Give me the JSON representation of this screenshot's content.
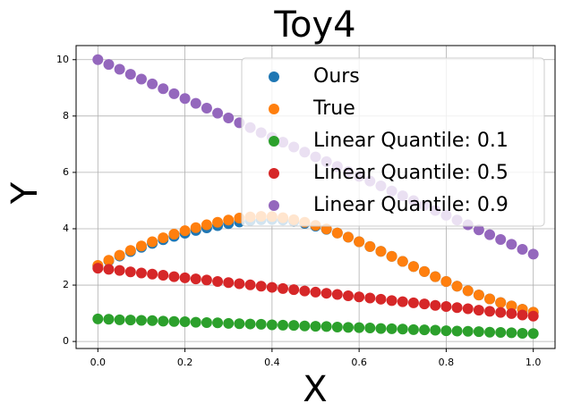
{
  "chart_data": {
    "type": "scatter",
    "title": "Toy4",
    "x_label": "X",
    "y_label": "Y",
    "x": [
      0,
      0.025,
      0.05,
      0.075,
      0.1,
      0.125,
      0.15,
      0.175,
      0.2,
      0.225,
      0.25,
      0.275,
      0.3,
      0.325,
      0.35,
      0.375,
      0.4,
      0.425,
      0.45,
      0.475,
      0.5,
      0.525,
      0.55,
      0.575,
      0.6,
      0.625,
      0.65,
      0.675,
      0.7,
      0.725,
      0.75,
      0.775,
      0.8,
      0.825,
      0.85,
      0.875,
      0.9,
      0.925,
      0.95,
      0.975,
      1
    ],
    "series": [
      {
        "name": "Ours",
        "color": "#1f77b4",
        "values": [
          2.68,
          2.86,
          3.03,
          3.19,
          3.34,
          3.48,
          3.61,
          3.73,
          3.84,
          3.94,
          4.03,
          4.11,
          4.18,
          4.24,
          4.29,
          4.32,
          4.33,
          4.31,
          4.26,
          4.19,
          4.09,
          3.98,
          3.85,
          3.7,
          3.54,
          3.37,
          3.2,
          3.02,
          2.84,
          2.66,
          2.48,
          2.3,
          2.13,
          1.96,
          1.8,
          1.65,
          1.51,
          1.38,
          1.26,
          1.14,
          1.04
        ]
      },
      {
        "name": "True",
        "color": "#ff7f0e",
        "values": [
          2.7,
          2.88,
          3.06,
          3.23,
          3.39,
          3.54,
          3.68,
          3.81,
          3.93,
          4.04,
          4.14,
          4.23,
          4.31,
          4.38,
          4.42,
          4.44,
          4.43,
          4.39,
          4.32,
          4.23,
          4.12,
          3.99,
          3.85,
          3.7,
          3.54,
          3.37,
          3.2,
          3.02,
          2.84,
          2.66,
          2.48,
          2.3,
          2.13,
          1.96,
          1.8,
          1.65,
          1.51,
          1.38,
          1.26,
          1.14,
          1.04
        ]
      },
      {
        "name": "Linear Quantile: 0.1",
        "color": "#2ca02c",
        "values": [
          0.8,
          0.79,
          0.77,
          0.76,
          0.75,
          0.74,
          0.72,
          0.71,
          0.7,
          0.68,
          0.67,
          0.66,
          0.64,
          0.63,
          0.62,
          0.61,
          0.59,
          0.58,
          0.57,
          0.55,
          0.54,
          0.53,
          0.51,
          0.5,
          0.49,
          0.48,
          0.46,
          0.45,
          0.44,
          0.42,
          0.41,
          0.4,
          0.38,
          0.37,
          0.36,
          0.35,
          0.33,
          0.32,
          0.31,
          0.29,
          0.28
        ]
      },
      {
        "name": "Linear Quantile: 0.5",
        "color": "#d62728",
        "values": [
          2.6,
          2.56,
          2.52,
          2.47,
          2.43,
          2.39,
          2.35,
          2.3,
          2.26,
          2.22,
          2.18,
          2.13,
          2.09,
          2.05,
          2.01,
          1.96,
          1.92,
          1.88,
          1.84,
          1.79,
          1.75,
          1.71,
          1.67,
          1.62,
          1.58,
          1.54,
          1.5,
          1.45,
          1.41,
          1.37,
          1.33,
          1.28,
          1.24,
          1.2,
          1.16,
          1.11,
          1.07,
          1.03,
          0.99,
          0.94,
          0.9
        ]
      },
      {
        "name": "Linear Quantile: 0.9",
        "color": "#9467bd",
        "values": [
          10,
          9.83,
          9.66,
          9.48,
          9.31,
          9.14,
          8.97,
          8.79,
          8.62,
          8.45,
          8.28,
          8.1,
          7.93,
          7.76,
          7.59,
          7.41,
          7.24,
          7.07,
          6.9,
          6.72,
          6.55,
          6.38,
          6.21,
          6.03,
          5.86,
          5.69,
          5.52,
          5.34,
          5.17,
          5.0,
          4.83,
          4.65,
          4.48,
          4.31,
          4.14,
          3.96,
          3.79,
          3.62,
          3.45,
          3.27,
          3.1
        ]
      }
    ],
    "xlim": [
      -0.05,
      1.05
    ],
    "xticks": [
      {
        "value": 0,
        "label": "0.0"
      },
      0.2,
      0.4,
      0.6,
      0.8,
      {
        "value": 1,
        "label": "1.0"
      }
    ],
    "ylim": [
      -0.25,
      10.5
    ],
    "yticks": [
      0,
      2,
      4,
      6,
      8,
      10
    ],
    "grid": true,
    "legend": "upper right"
  }
}
